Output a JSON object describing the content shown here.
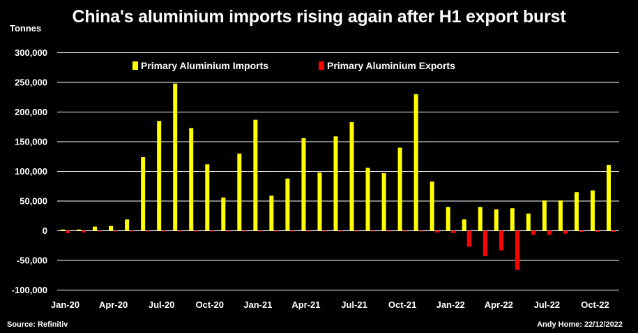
{
  "title": "China's aluminium imports rising again after H1 export burst",
  "units_label": "Tonnes",
  "source": "Source: Refinitiv",
  "author": "Andy Home: 22/12/2022",
  "chart_data": {
    "type": "bar",
    "ylim": [
      -100000,
      300000
    ],
    "y_ticks": [
      300000,
      250000,
      200000,
      150000,
      100000,
      50000,
      0,
      -50000,
      -100000
    ],
    "y_tick_labels": [
      "300,000",
      "250,000",
      "200,000",
      "150,000",
      "100,000",
      "50,000",
      "0",
      "-50,000",
      "-100,000"
    ],
    "grid": true,
    "legend_position": "top",
    "categories": [
      "Jan-20",
      "Feb-20",
      "Mar-20",
      "Apr-20",
      "May-20",
      "Jun-20",
      "Jul-20",
      "Aug-20",
      "Sep-20",
      "Oct-20",
      "Nov-20",
      "Dec-20",
      "Jan-21",
      "Feb-21",
      "Mar-21",
      "Apr-21",
      "May-21",
      "Jun-21",
      "Jul-21",
      "Aug-21",
      "Sep-21",
      "Oct-21",
      "Nov-21",
      "Dec-21",
      "Jan-22",
      "Feb-22",
      "Mar-22",
      "Apr-22",
      "May-22",
      "Jun-22",
      "Jul-22",
      "Aug-22",
      "Sep-22",
      "Oct-22",
      "Nov-22"
    ],
    "x_tick_labels": [
      "Jan-20",
      "Apr-20",
      "Jul-20",
      "Oct-20",
      "Jan-21",
      "Apr-21",
      "Jul-21",
      "Oct-21",
      "Jan-22",
      "Apr-22",
      "Jul-22",
      "Oct-22"
    ],
    "series": [
      {
        "name": "Primary Aluminium Imports",
        "color": "#ffff00",
        "values": [
          2000,
          2000,
          7000,
          8000,
          19000,
          124000,
          185000,
          248000,
          173000,
          112000,
          56000,
          130000,
          187000,
          59000,
          88000,
          156000,
          98000,
          159000,
          183000,
          106000,
          97000,
          140000,
          230000,
          83000,
          40000,
          19000,
          40000,
          36000,
          38000,
          29000,
          51000,
          51000,
          65000,
          68000,
          111000
        ]
      },
      {
        "name": "Primary Aluminium Exports",
        "color": "#ff0000",
        "values": [
          -4000,
          -3000,
          -1000,
          -1000,
          -1000,
          -500,
          -500,
          -500,
          -500,
          -500,
          -500,
          -500,
          -500,
          -500,
          -500,
          -500,
          -500,
          -500,
          -500,
          -500,
          -500,
          -500,
          -500,
          -3000,
          -4000,
          -27000,
          -43000,
          -33000,
          -66000,
          -7000,
          -7000,
          -5000,
          -2000,
          -2000,
          -2000
        ]
      }
    ]
  }
}
